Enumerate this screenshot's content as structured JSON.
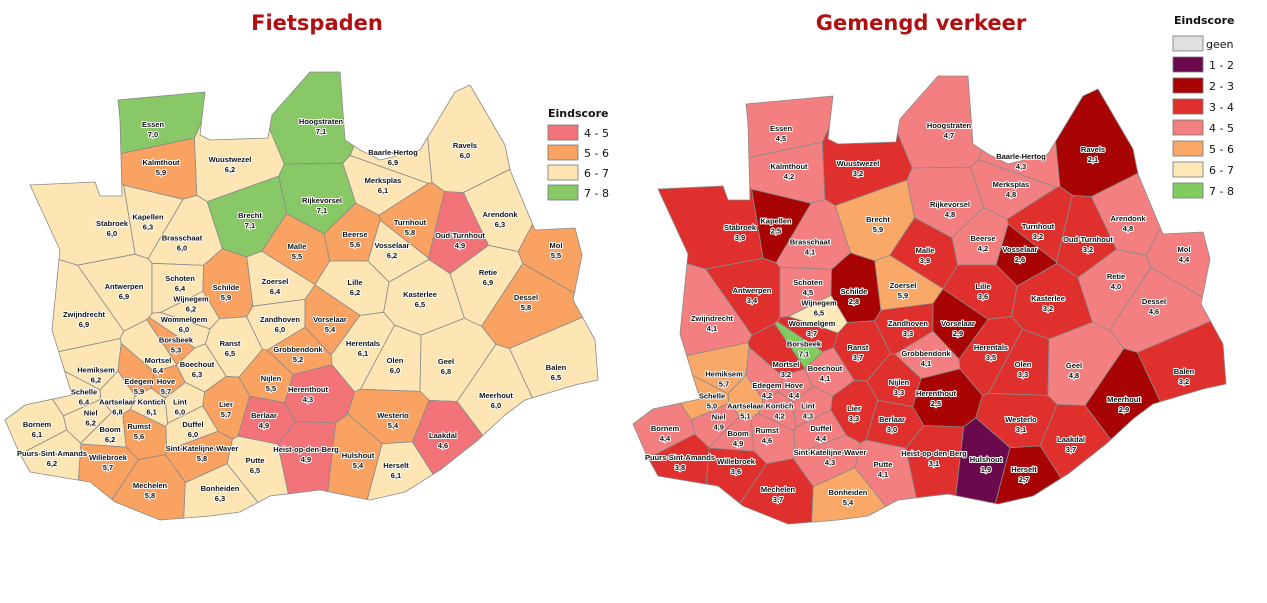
{
  "maps": [
    {
      "id": "fietspaden",
      "title": "Fietspaden",
      "legend": {
        "title": "Eindscore",
        "items": [
          {
            "label": "4 - 5",
            "color": "#f27479"
          },
          {
            "label": "5 - 6",
            "color": "#f9a262"
          },
          {
            "label": "6 - 7",
            "color": "#fde6b4"
          },
          {
            "label": "7 - 8",
            "color": "#88c866"
          }
        ]
      }
    },
    {
      "id": "gemengd",
      "title": "Gemengd verkeer",
      "legend": {
        "title": "Eindscore",
        "items": [
          {
            "label": "geen",
            "color": "#e0e0e0"
          },
          {
            "label": "1 - 2",
            "color": "#6a0a4c"
          },
          {
            "label": "2 - 3",
            "color": "#a80404"
          },
          {
            "label": "3 - 4",
            "color": "#e0302e"
          },
          {
            "label": "4 - 5",
            "color": "#f47f80"
          },
          {
            "label": "5 - 6",
            "color": "#f9a868"
          },
          {
            "label": "6 - 7",
            "color": "#fde8b8"
          },
          {
            "label": "7 - 8",
            "color": "#80cc5e"
          }
        ]
      }
    }
  ],
  "municipalities": [
    {
      "name": "Essen",
      "fietspaden": "7,0",
      "gemengd": "4,5"
    },
    {
      "name": "Kalmthout",
      "fietspaden": "5,9",
      "gemengd": "4,2"
    },
    {
      "name": "Wuustwezel",
      "fietspaden": "6,2",
      "gemengd": "3,2"
    },
    {
      "name": "Hoogstraten",
      "fietspaden": "7,1",
      "gemengd": "4,7"
    },
    {
      "name": "Baarle-Hertog",
      "fietspaden": "6,9",
      "gemengd": "4,3"
    },
    {
      "name": "Ravels",
      "fietspaden": "6,0",
      "gemengd": "2,1"
    },
    {
      "name": "Merksplas",
      "fietspaden": "6,1",
      "gemengd": "4,8"
    },
    {
      "name": "Rijkevorsel",
      "fietspaden": "7,1",
      "gemengd": "4,8"
    },
    {
      "name": "Brecht",
      "fietspaden": "7,1",
      "gemengd": "5,9"
    },
    {
      "name": "Stabroek",
      "fietspaden": "6,0",
      "gemengd": "3,9"
    },
    {
      "name": "Kapellen",
      "fietspaden": "6,3",
      "gemengd": "2,5"
    },
    {
      "name": "Brasschaat",
      "fietspaden": "6,0",
      "gemengd": "4,1"
    },
    {
      "name": "Malle",
      "fietspaden": "5,5",
      "gemengd": "3,9"
    },
    {
      "name": "Beerse",
      "fietspaden": "5,6",
      "gemengd": "4,2"
    },
    {
      "name": "Vosselaar",
      "fietspaden": "6,2",
      "gemengd": "2,6"
    },
    {
      "name": "Turnhout",
      "fietspaden": "5,8",
      "gemengd": "3,2"
    },
    {
      "name": "Oud-Turnhout",
      "fietspaden": "4,9",
      "gemengd": "3,2"
    },
    {
      "name": "Arendonk",
      "fietspaden": "6,3",
      "gemengd": "4,8"
    },
    {
      "name": "Mol",
      "fietspaden": "5,5",
      "gemengd": "4,4"
    },
    {
      "name": "Retie",
      "fietspaden": "6,9",
      "gemengd": "4,0"
    },
    {
      "name": "Dessel",
      "fietspaden": "5,8",
      "gemengd": "4,6"
    },
    {
      "name": "Antwerpen",
      "fietspaden": "6,9",
      "gemengd": "3,4"
    },
    {
      "name": "Schoten",
      "fietspaden": "6,4",
      "gemengd": "4,5"
    },
    {
      "name": "Schilde",
      "fietspaden": "5,9",
      "gemengd": "2,8"
    },
    {
      "name": "Zoersel",
      "fietspaden": "6,4",
      "gemengd": "5,9"
    },
    {
      "name": "Lille",
      "fietspaden": "6,2",
      "gemengd": "3,6"
    },
    {
      "name": "Kasterlee",
      "fietspaden": "6,5",
      "gemengd": "3,2"
    },
    {
      "name": "Zwijndrecht",
      "fietspaden": "6,9",
      "gemengd": "4,1"
    },
    {
      "name": "Wijnegem",
      "fietspaden": "6,2",
      "gemengd": "6,5"
    },
    {
      "name": "Wommelgem",
      "fietspaden": "6,0",
      "gemengd": "3,7"
    },
    {
      "name": "Borsbeek",
      "fietspaden": "5,3",
      "gemengd": "7,1"
    },
    {
      "name": "Mortsel",
      "fietspaden": "6,4",
      "gemengd": "3,2"
    },
    {
      "name": "Ranst",
      "fietspaden": "6,5",
      "gemengd": "3,7"
    },
    {
      "name": "Zandhoven",
      "fietspaden": "6,0",
      "gemengd": "3,3"
    },
    {
      "name": "Vorselaar",
      "fietspaden": "5,4",
      "gemengd": "2,9"
    },
    {
      "name": "Grobbendonk",
      "fietspaden": "5,2",
      "gemengd": "4,1"
    },
    {
      "name": "Herentals",
      "fietspaden": "6,1",
      "gemengd": "3,5"
    },
    {
      "name": "Olen",
      "fietspaden": "6,0",
      "gemengd": "3,3"
    },
    {
      "name": "Geel",
      "fietspaden": "6,8",
      "gemengd": "4,8"
    },
    {
      "name": "Balen",
      "fietspaden": "6,5",
      "gemengd": "3,2"
    },
    {
      "name": "Hemiksem",
      "fietspaden": "6,2",
      "gemengd": "5,7"
    },
    {
      "name": "Edegem",
      "fietspaden": "5,9",
      "gemengd": "4,2"
    },
    {
      "name": "Hove",
      "fietspaden": "5,7",
      "gemengd": "4,4"
    },
    {
      "name": "Boechout",
      "fietspaden": "6,3",
      "gemengd": "4,1"
    },
    {
      "name": "Nijlen",
      "fietspaden": "5,5",
      "gemengd": "3,3"
    },
    {
      "name": "Herenthout",
      "fietspaden": "4,3",
      "gemengd": "2,5"
    },
    {
      "name": "Meerhout",
      "fietspaden": "6,0",
      "gemengd": "2,9"
    },
    {
      "name": "Schelle",
      "fietspaden": "6,4",
      "gemengd": "5,0"
    },
    {
      "name": "Aartselaar",
      "fietspaden": "6,8",
      "gemengd": "5,1"
    },
    {
      "name": "Niel",
      "fietspaden": "6,2",
      "gemengd": "4,9"
    },
    {
      "name": "Kontich",
      "fietspaden": "6,1",
      "gemengd": "4,2"
    },
    {
      "name": "Lint",
      "fietspaden": "6,0",
      "gemengd": "4,3"
    },
    {
      "name": "Lier",
      "fietspaden": "5,7",
      "gemengd": "3,3"
    },
    {
      "name": "Berlaar",
      "fietspaden": "4,9",
      "gemengd": "3,0"
    },
    {
      "name": "Westerlo",
      "fietspaden": "5,4",
      "gemengd": "3,1"
    },
    {
      "name": "Bornem",
      "fietspaden": "6,1",
      "gemengd": "4,4"
    },
    {
      "name": "Boom",
      "fietspaden": "6,2",
      "gemengd": "4,9"
    },
    {
      "name": "Rumst",
      "fietspaden": "5,6",
      "gemengd": "4,6"
    },
    {
      "name": "Duffel",
      "fietspaden": "6,0",
      "gemengd": "4,4"
    },
    {
      "name": "Heist-op-den-Berg",
      "fietspaden": "4,9",
      "gemengd": "3,1"
    },
    {
      "name": "Hulshout",
      "fietspaden": "5,4",
      "gemengd": "1,9"
    },
    {
      "name": "Herselt",
      "fietspaden": "6,1",
      "gemengd": "2,7"
    },
    {
      "name": "Laakdal",
      "fietspaden": "4,6",
      "gemengd": "3,7"
    },
    {
      "name": "Puurs-Sint-Amands",
      "fietspaden": "6,2",
      "gemengd": "3,8"
    },
    {
      "name": "Willebroek",
      "fietspaden": "5,7",
      "gemengd": "3,6"
    },
    {
      "name": "Sint-Katelijne-Waver",
      "fietspaden": "5,8",
      "gemengd": "4,3"
    },
    {
      "name": "Putte",
      "fietspaden": "6,5",
      "gemengd": "4,1"
    },
    {
      "name": "Mechelen",
      "fietspaden": "5,8",
      "gemengd": "3,7"
    },
    {
      "name": "Bonheiden",
      "fietspaden": "6,3",
      "gemengd": "5,4"
    }
  ]
}
